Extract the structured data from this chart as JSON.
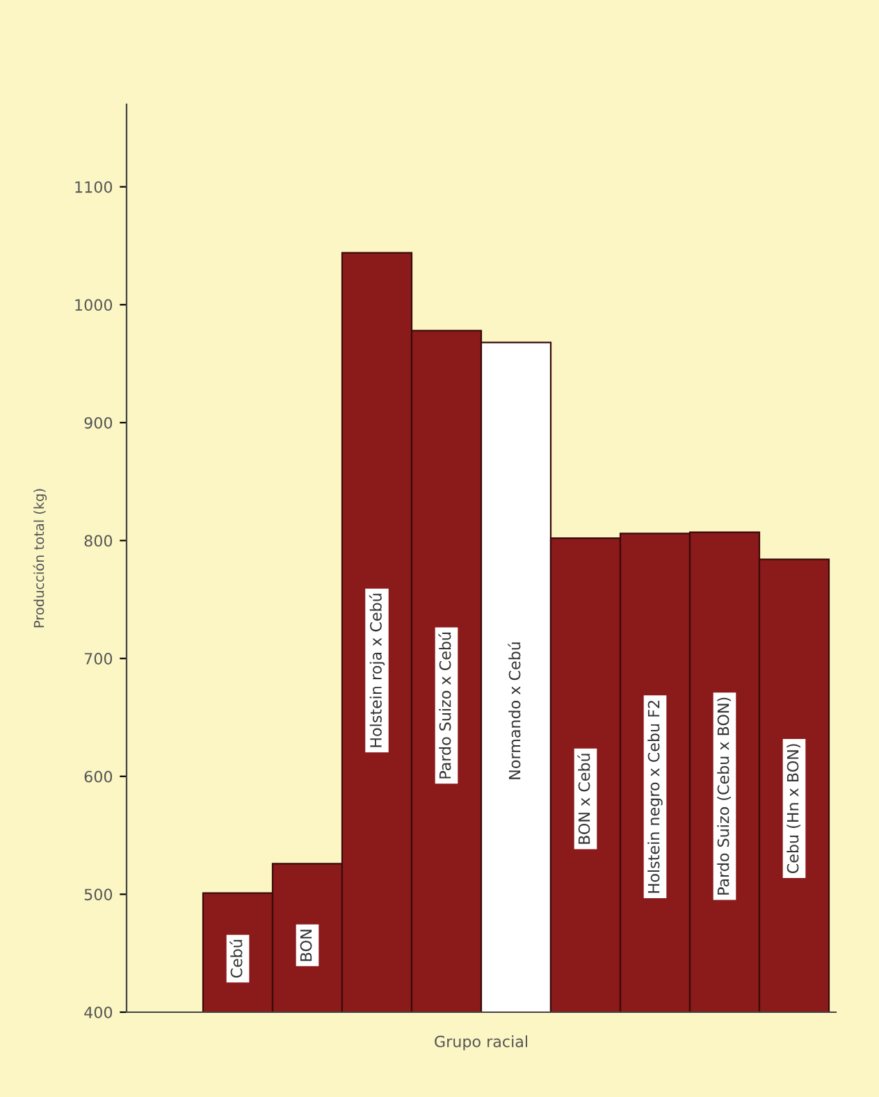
{
  "chart_data": {
    "type": "bar",
    "xlabel": "Grupo racial",
    "ylabel": "Producción total (kg)",
    "categories": [
      "Cebú",
      "BON",
      "Holstein roja x Cebú",
      "Pardo Suizo x Cebú",
      "Normando x Cebú",
      "BON x Cebú",
      "Holstein negro x Cebu F2",
      "Pardo Suizo (Cebu x BON)",
      "Cebu (Hn x BON)"
    ],
    "values": [
      501,
      526,
      1044,
      978,
      968,
      802,
      806,
      807,
      784
    ],
    "colors": [
      "#8b1a1a",
      "#8b1a1a",
      "#8b1a1a",
      "#8b1a1a",
      "#ffffff",
      "#8b1a1a",
      "#8b1a1a",
      "#8b1a1a",
      "#8b1a1a"
    ],
    "ylim": [
      400,
      1170
    ],
    "yticks": [
      400,
      500,
      600,
      700,
      800,
      900,
      1000,
      1100
    ],
    "grid": false,
    "legend": false
  }
}
